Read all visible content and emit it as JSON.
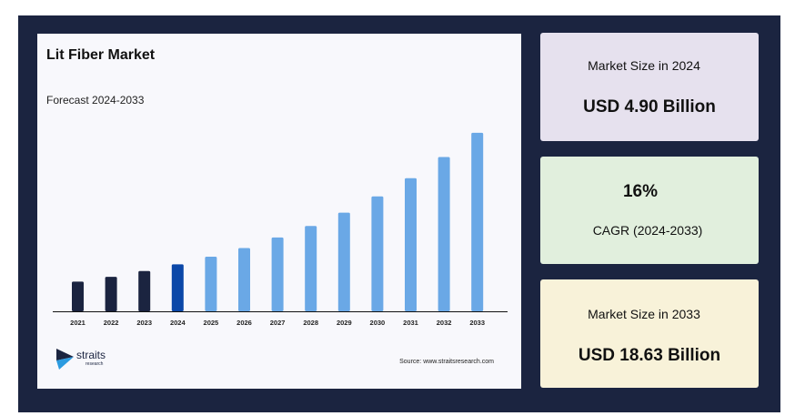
{
  "chart_data": {
    "type": "bar",
    "title": "Lit Fiber Market",
    "subtitle": "Forecast 2024-2033",
    "categories": [
      "2021",
      "2022",
      "2023",
      "2024",
      "2025",
      "2026",
      "2027",
      "2028",
      "2029",
      "2030",
      "2031",
      "2032",
      "2033"
    ],
    "values": [
      3.1,
      3.6,
      4.2,
      4.9,
      5.7,
      6.6,
      7.7,
      8.9,
      10.3,
      12.0,
      13.9,
      16.1,
      18.63
    ],
    "ylim": [
      0,
      19
    ],
    "grid": false,
    "legend": "none",
    "colors": {
      "historical": "#1b2440",
      "base_year": "#0b47a8",
      "forecast": "#6aa8e6"
    },
    "base_year": "2024"
  },
  "source": "Source: www.straitsresearch.com",
  "logo": {
    "word": "straits",
    "sub": "research"
  },
  "stats": {
    "size_2024_label": "Market Size in 2024",
    "size_2024_value": "USD 4.90 Billion",
    "cagr_value": "16%",
    "cagr_label": "CAGR (2024-2033)",
    "size_2033_label": "Market Size in 2033",
    "size_2033_value": "USD 18.63 Billion"
  }
}
